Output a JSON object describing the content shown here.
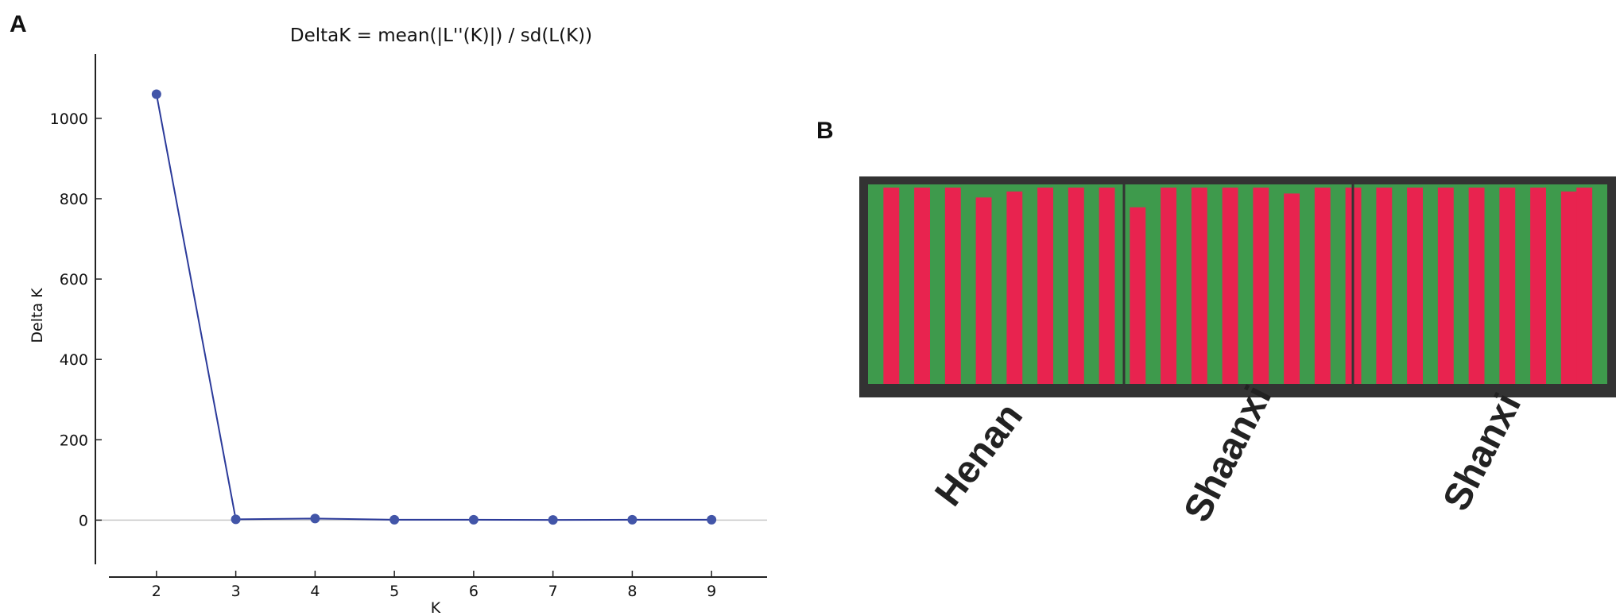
{
  "panels": {
    "a_label": "A",
    "b_label": "B"
  },
  "chart_data": [
    {
      "type": "line",
      "title": "DeltaK = mean(|L''(K)|) / sd(L(K))",
      "xlabel": "K",
      "ylabel": "Delta K",
      "x": [
        2,
        3,
        4,
        5,
        6,
        7,
        8,
        9
      ],
      "y": [
        1060,
        2,
        4,
        1,
        1,
        0.5,
        1,
        1
      ],
      "xlim": [
        1.4,
        9.7
      ],
      "ylim": [
        -110,
        1160
      ],
      "xticks": [
        "2",
        "3",
        "4",
        "5",
        "6",
        "7",
        "8",
        "9"
      ],
      "yticks": [
        "0",
        "200",
        "400",
        "600",
        "800",
        "1000"
      ],
      "grid": false,
      "line_color": "#2b3a9a",
      "marker_color": "#4255a8",
      "zero_line_color": "#c8c8c8"
    },
    {
      "type": "bar",
      "subtype": "stacked-structure-barplot",
      "legend": "none",
      "groups": [
        "Henan",
        "Shaanxi",
        "Shanxi"
      ],
      "colors": {
        "cluster1": "#e8234f",
        "cluster2": "#3e9a4c",
        "frame": "#333333"
      },
      "segments": [
        [
          0.0,
          0.0
        ],
        [
          0.0,
          1.0
        ],
        [
          0.0,
          0.0
        ],
        [
          0.0,
          1.0
        ],
        [
          0.0,
          0.0
        ],
        [
          0.0,
          1.0
        ],
        [
          0.0,
          0.0
        ],
        [
          0.05,
          1.0
        ],
        [
          0.0,
          0.0
        ],
        [
          0.02,
          1.0
        ],
        [
          0.0,
          0.0
        ],
        [
          0.0,
          1.0
        ],
        [
          0.0,
          0.0
        ],
        [
          0.0,
          1.0
        ],
        [
          0.0,
          0.0
        ],
        [
          0.0,
          1.0
        ],
        [
          0.0,
          0.0
        ],
        [
          0.1,
          1.0
        ],
        [
          0.0,
          0.0
        ],
        [
          0.0,
          1.0
        ],
        [
          0.0,
          0.0
        ],
        [
          0.0,
          1.0
        ],
        [
          0.0,
          0.0
        ],
        [
          0.0,
          1.0
        ],
        [
          0.0,
          0.0
        ],
        [
          0.0,
          1.0
        ],
        [
          0.0,
          0.0
        ],
        [
          0.03,
          1.0
        ],
        [
          0.0,
          0.0
        ],
        [
          0.0,
          1.0
        ],
        [
          0.0,
          0.0
        ],
        [
          0.0,
          1.0
        ],
        [
          0.0,
          0.0
        ],
        [
          0.0,
          1.0
        ],
        [
          0.0,
          0.0
        ],
        [
          0.0,
          1.0
        ],
        [
          0.0,
          0.0
        ],
        [
          0.0,
          1.0
        ],
        [
          0.0,
          0.0
        ],
        [
          0.0,
          1.0
        ],
        [
          0.0,
          0.0
        ],
        [
          0.0,
          1.0
        ],
        [
          0.0,
          0.0
        ],
        [
          0.0,
          1.0
        ],
        [
          0.0,
          0.0
        ],
        [
          0.02,
          1.0
        ],
        [
          0.0,
          1.0
        ],
        [
          0.0,
          0.0
        ]
      ]
    }
  ]
}
